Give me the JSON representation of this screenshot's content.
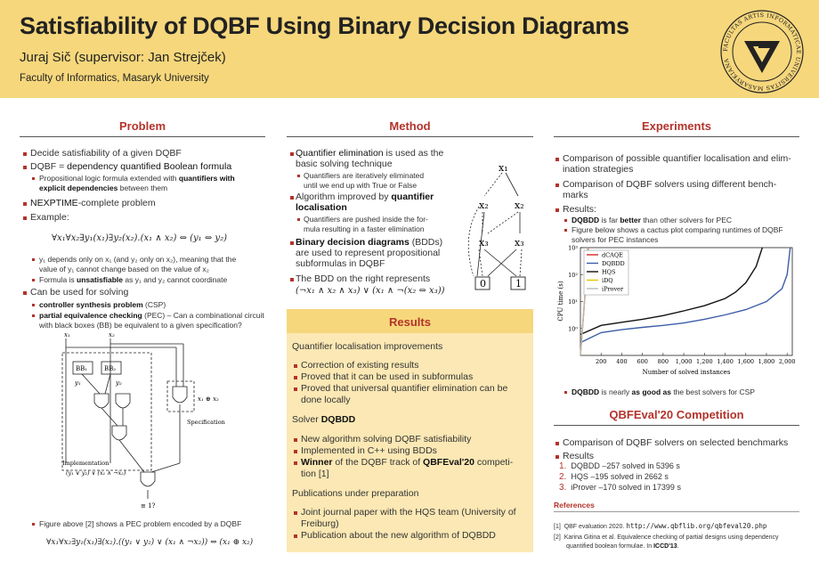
{
  "header": {
    "title": "Satisfiability of DQBF Using Binary Decision Diagrams",
    "author": "Juraj Sič (supervisor: Jan Strejček)",
    "affiliation": "Faculty of Informatics, Masaryk University",
    "seal_text": "FACULTAS ARTIS INFORMATICAE UNIVERSITAS MASARYKIANA"
  },
  "problem": {
    "title": "Problem",
    "b1": "Decide satisfiability of a given DQBF",
    "b2_pre": "DQBF = ",
    "b2_strong": "dependency quantified Boolean formula",
    "b2_sub_1": "Propositional logic formula extended with",
    "b2_sub_1_strong": "quantifiers with",
    "b2_sub_2_strong": "explicit dependencies",
    "b2_sub_2": "between them",
    "b3_strong": "NEXPTIME",
    "b3": "-complete problem",
    "b4": "Example:",
    "formula1": "∀x₁∀x₂∃y₁(x₁)∃y₂(x₂).(x₁ ∧ x₂) ⇔ (y₁ ⇔ y₂)",
    "sub_a1": "y₁ depends only on x₁ (and y₂ only on x₂), meaning that the",
    "sub_a2": "value of y₁ cannot change based on the value of x₂",
    "sub_b_pre": "Formula is ",
    "sub_b_strong": "unsatisfiable",
    "sub_b_post": " as y₁ and y₂ cannot coordinate",
    "b5": "Can be used for solving",
    "sub_c_strong": "controller synthesis problem",
    "sub_c": " (CSP)",
    "sub_d_strong": "partial equivalence checking",
    "sub_d": " (PEC) – Can a combinational circuit",
    "sub_d2": "with black boxes (BB) be equivalent to a given specification?",
    "circuit": {
      "x1": "x₁",
      "x2": "x₂",
      "bb1": "BB₁",
      "bb2": "BB₂",
      "y1": "y₁",
      "y2": "y₂",
      "xor": "x₁ ⊕ x₂",
      "spec": "Specification",
      "impl": "Implementation",
      "impl_formula": "(y₁ ∨ y₂) ∨ (x₁ ∧ ¬x₂)",
      "eq": "≡ 1?"
    },
    "fig_caption": "Figure above [2] shows a PEC problem encoded by a DQBF",
    "formula2": "∀x₁∀x₂∃y₁(x₁)∃(x₂).((y₁ ∨ y₂) ∨ (x₁ ∧ ¬x₂)) ⇔ (x₁ ⊕ x₂)"
  },
  "method": {
    "title": "Method",
    "b1_strong": "Quantifier elimination",
    "b1": " is used as the",
    "b1b": "basic solving technique",
    "s1a": "Quantifiers are iteratively eliminated",
    "s1b": "until we end up with True or False",
    "b2a": "Algorithm improved by ",
    "b2a_strong": "quantifier",
    "b2b_strong": "localisation",
    "s2a": "Quantifiers are pushed inside the for-",
    "s2b": "mula resulting in a faster elimination",
    "b3_strong": "Binary decision diagrams",
    "b3": " (BDDs)",
    "b3b": "are used to represent propositional",
    "b3c": "subformulas in DQBF",
    "b4a": "The BDD on the right represents",
    "b4_formula": "(¬x₁ ∧ x₂ ∧ x₃) ∨ (x₁ ∧ ¬(x₂ ⇔ x₃))",
    "bdd": {
      "n1": "x₁",
      "n2a": "x₂",
      "n2b": "x₂",
      "n3a": "x₃",
      "n3b": "x₃",
      "t0": "0",
      "t1": "1"
    }
  },
  "results": {
    "title": "Results",
    "h1": "Quantifier localisation improvements",
    "r1": "Correction of existing results",
    "r2": "Proved that it can be used in subformulas",
    "r3a": "Proved that universal quantifier elimination can be",
    "r3b": "done locally",
    "h2_pre": "Solver ",
    "h2_strong": "DQBDD",
    "r4": "New algorithm solving DQBF satisfiability",
    "r5": "Implemented in C++ using BDDs",
    "r6_strong": "Winner",
    "r6": " of the DQBF track of ",
    "r6_strong2": "QBFEval'20",
    "r6b": " competi-",
    "r6c": "tion [1]",
    "h3": "Publications under preparation",
    "r7a": "Joint journal paper with the HQS team (University of",
    "r7b": "Freiburg)",
    "r8": "Publication about the new algorithm of DQBDD"
  },
  "experiments": {
    "title": "Experiments",
    "b1a": "Comparison of possible quantifier localisation and elim-",
    "b1b": "ination strategies",
    "b2a": "Comparison of DQBF solvers using different bench-",
    "b2b": "marks",
    "b3": "Results:",
    "s1_strong": "DQBDD",
    "s1_mid": " is far ",
    "s1_strong2": "better",
    "s1": " than other solvers for PEC",
    "s2a": "Figure below shows a cactus plot comparing runtimes of DQBF",
    "s2b": "solvers for PEC instances",
    "s3_strong": "DQBDD",
    "s3_mid": " is nearly ",
    "s3_strong2": "as good as",
    "s3": " the best solvers for CSP"
  },
  "chart_data": {
    "type": "line",
    "title": "",
    "xlabel": "Number of solved instances",
    "ylabel": "CPU time (s)",
    "xlim": [
      0,
      2050
    ],
    "ylim_log10": [
      -1,
      3
    ],
    "yscale": "log",
    "x_ticks": [
      "200",
      "400",
      "600",
      "800",
      "1,000",
      "1,200",
      "1,400",
      "1,600",
      "1,800",
      "2,000"
    ],
    "y_ticks": [
      "10⁰",
      "10¹",
      "10²",
      "10³"
    ],
    "legend_position": "top-left",
    "grid": false,
    "series": [
      {
        "name": "dCAQE",
        "color": "#d62728",
        "x": [
          0,
          20,
          40,
          60,
          75
        ],
        "y": [
          0.1,
          1,
          10,
          100,
          1000
        ]
      },
      {
        "name": "DQBDD",
        "color": "#3b5ea8",
        "x": [
          0,
          200,
          400,
          600,
          800,
          1000,
          1200,
          1400,
          1600,
          1800,
          1950,
          2000,
          2030
        ],
        "y": [
          0.3,
          0.7,
          0.9,
          1.1,
          1.3,
          1.6,
          2.2,
          3.2,
          5,
          10,
          30,
          100,
          1000
        ]
      },
      {
        "name": "HQS",
        "color": "#111111",
        "x": [
          0,
          200,
          400,
          600,
          800,
          1000,
          1200,
          1400,
          1500,
          1600,
          1700,
          1760
        ],
        "y": [
          0.6,
          1.3,
          1.7,
          2.2,
          3,
          4.5,
          7,
          13,
          22,
          50,
          200,
          1000
        ]
      },
      {
        "name": "iDQ",
        "color": "#e6c200",
        "x": [
          0,
          20,
          40,
          60,
          70
        ],
        "y": [
          0.1,
          1,
          10,
          100,
          1000
        ]
      },
      {
        "name": "iProver",
        "color": "#b8b8b8",
        "x": [
          0,
          20,
          40,
          60,
          70
        ],
        "y": [
          0.1,
          1,
          10,
          100,
          1000
        ]
      }
    ]
  },
  "competition": {
    "title": "QBFEval'20 Competition",
    "b1": "Comparison of DQBF solvers on selected benchmarks",
    "b2": "Results",
    "items": [
      {
        "n": "1.",
        "text": "DQBDD –257 solved in 5396 s"
      },
      {
        "n": "2.",
        "text": "HQS –195 solved in 2662 s"
      },
      {
        "n": "3.",
        "text": "iProver –170 solved in 17399 s"
      }
    ]
  },
  "references": {
    "title": "References",
    "r1_num": "[1]",
    "r1_text": "QBF evaluation 2020.",
    "r1_url": "http://www.qbflib.org/qbfeval20.php",
    "r2_num": "[2]",
    "r2_a": "Karina Gitina et al. Equivalence checking of partial designs using dependency",
    "r2_b": "quantified boolean formulae. In ",
    "r2_c": "ICCD'13",
    "r2_d": "."
  },
  "colors": {
    "header": "#f6d77c",
    "accent": "#b3332b",
    "results_bg": "#fbe8b4"
  }
}
